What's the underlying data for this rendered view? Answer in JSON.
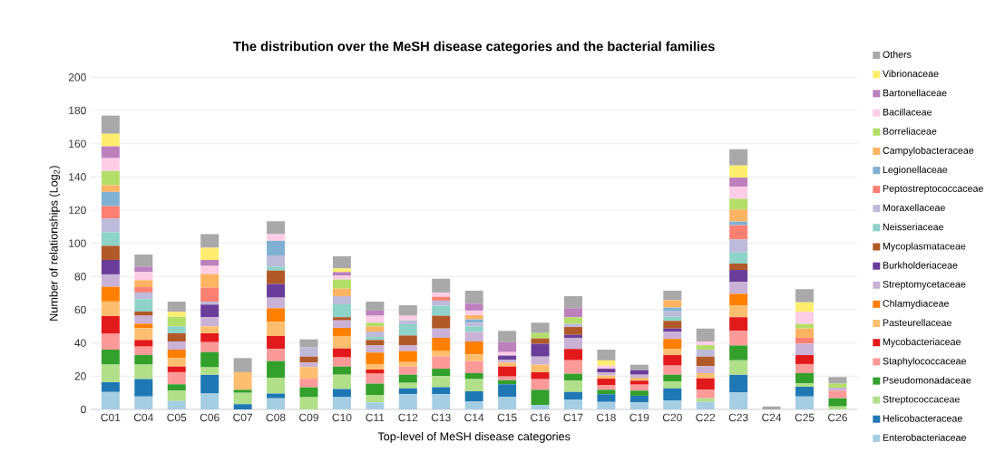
{
  "chart_data": {
    "type": "bar",
    "stacked": true,
    "title": "The distribution over the MeSH disease categories and the bacterial families",
    "xlabel": "Top-level of MeSH disease categories",
    "ylabel": "Number of relationships (Log$_{2}$)",
    "categories": [
      "C01",
      "C04",
      "C05",
      "C06",
      "C07",
      "C08",
      "C09",
      "C10",
      "C11",
      "C12",
      "C13",
      "C14",
      "C15",
      "C16",
      "C17",
      "C18",
      "C19",
      "C20",
      "C22",
      "C23",
      "C24",
      "C25",
      "C26"
    ],
    "ylim": [
      0,
      200
    ],
    "yticks": [
      0,
      20,
      40,
      60,
      80,
      100,
      120,
      140,
      160,
      180,
      200
    ],
    "grid": "y",
    "legend": "right",
    "series": [
      {
        "name": "Enterobacteriaceae",
        "color": "#a6cee3",
        "values": [
          10.5,
          7.8,
          5,
          9.6,
          null,
          6.7,
          null,
          7.3,
          4.2,
          9.1,
          9.1,
          4.9,
          7.6,
          2.7,
          6,
          4.5,
          4.2,
          5.5,
          4.5,
          10.4,
          null,
          7.8,
          null
        ]
      },
      {
        "name": "Helicobacteraceae",
        "color": "#1f78b4",
        "values": [
          5.9,
          10.4,
          null,
          11.3,
          3.1,
          2.9,
          null,
          4.9,
          null,
          3.6,
          4.2,
          6,
          7.5,
          null,
          4.5,
          4.6,
          4,
          7.2,
          null,
          10.5,
          null,
          5.8,
          null
        ]
      },
      {
        "name": "Streptococcaceae",
        "color": "#b2df8a",
        "values": [
          10.6,
          8.8,
          6.3,
          4.4,
          6.9,
          9.5,
          7.3,
          8.7,
          4.5,
          3.3,
          6.7,
          7.3,
          null,
          null,
          6.8,
          null,
          null,
          4.2,
          2.2,
          8.7,
          null,
          2.2,
          1.8
        ]
      },
      {
        "name": "Pseudomonadaceae",
        "color": "#33a02c",
        "values": [
          9,
          5.7,
          3.8,
          9.2,
          1.8,
          10,
          6,
          4.9,
          6.8,
          4.9,
          4.5,
          3.6,
          2.5,
          9.1,
          4.2,
          2.7,
          3.1,
          4,
          null,
          8.9,
          null,
          6,
          4.9
        ]
      },
      {
        "name": "Staphylococcaceae",
        "color": "#fb9a99",
        "values": [
          9.5,
          5.1,
          7.3,
          6,
          null,
          7.3,
          5.2,
          5.5,
          6,
          4.9,
          7.3,
          7.3,
          2.2,
          6.4,
          8.1,
          2.7,
          3.6,
          5.5,
          5.1,
          8.8,
          null,
          5.5,
          4.6
        ]
      },
      {
        "name": "Mycobacteriaceae",
        "color": "#e31a1c",
        "values": [
          10.7,
          4,
          3.4,
          5.3,
          null,
          7.8,
          null,
          5.4,
          2.5,
          null,
          null,
          null,
          6,
          4.2,
          6.8,
          4,
          2.4,
          6.3,
          6.9,
          8.2,
          null,
          5.4,
          null
        ]
      },
      {
        "name": "Pasteurellaceae",
        "color": "#fdbf6f",
        "values": [
          8.8,
          7.2,
          5.1,
          4.2,
          10.6,
          8.5,
          7,
          7.5,
          3.3,
          2.7,
          3.3,
          4,
          2.4,
          4.5,
          null,
          1.9,
          1.8,
          3.7,
          3.1,
          7.2,
          null,
          null,
          null
        ]
      },
      {
        "name": "Chlamydiaceae",
        "color": "#ff7f00",
        "values": [
          8.8,
          2.6,
          5.1,
          null,
          null,
          8.2,
          null,
          4.9,
          6.9,
          6.6,
          8,
          7.8,
          null,
          null,
          null,
          null,
          null,
          6,
          null,
          6.9,
          null,
          null,
          null
        ]
      },
      {
        "name": "Streptomycetaceae",
        "color": "#cab2d6",
        "values": [
          7.5,
          4.8,
          4.9,
          5.5,
          null,
          6.4,
          2.7,
          4.5,
          4.3,
          3.6,
          5.6,
          5.8,
          1.8,
          4.9,
          6.7,
          1.8,
          1.8,
          4.3,
          4.2,
          7.1,
          null,
          6.9,
          1.8
        ]
      },
      {
        "name": "Burkholderiaceae",
        "color": "#6a3d9a",
        "values": [
          8.7,
          null,
          null,
          7.6,
          null,
          8.2,
          null,
          null,
          null,
          null,
          null,
          null,
          2.4,
          7.7,
          1.8,
          2.3,
          2.7,
          2,
          null,
          7.3,
          null,
          null,
          null
        ]
      },
      {
        "name": "Mycoplasmataceae",
        "color": "#b15928",
        "values": [
          8.5,
          2.6,
          4.9,
          null,
          null,
          8.1,
          3.6,
          1.9,
          3.3,
          5.8,
          7.7,
          null,
          null,
          3.2,
          4.7,
          null,
          null,
          4.6,
          5.8,
          3.8,
          null,
          null,
          null
        ]
      },
      {
        "name": "Neisseriaceae",
        "color": "#8dd3c7",
        "values": [
          8.2,
          7.4,
          4.2,
          null,
          null,
          2.4,
          null,
          7.8,
          1.8,
          6.8,
          6,
          3.3,
          null,
          null,
          null,
          null,
          null,
          2.5,
          null,
          6.7,
          null,
          null,
          null
        ]
      },
      {
        "name": "Moraxellaceae",
        "color": "#bebada",
        "values": [
          8.3,
          4,
          null,
          1.8,
          null,
          6.7,
          5.5,
          4.9,
          3.3,
          2.3,
          3.1,
          2.2,
          null,
          null,
          1.9,
          null,
          null,
          3.3,
          4.2,
          7.9,
          null,
          null,
          null
        ]
      },
      {
        "name": "Peptostreptococcaceae",
        "color": "#fb8072",
        "values": [
          7.4,
          3.2,
          null,
          8.4,
          null,
          null,
          null,
          null,
          null,
          null,
          2.3,
          null,
          null,
          null,
          null,
          null,
          null,
          null,
          null,
          8.5,
          null,
          3.5,
          null
        ]
      },
      {
        "name": "Legionellaceae",
        "color": "#80b1d3",
        "values": [
          8.6,
          null,
          null,
          null,
          null,
          8.8,
          null,
          null,
          null,
          null,
          null,
          2,
          null,
          null,
          null,
          null,
          null,
          2.2,
          null,
          2.2,
          null,
          null,
          null
        ]
      },
      {
        "name": "Campylobacteraceae",
        "color": "#fdb462",
        "values": [
          4,
          4.2,
          null,
          8.2,
          null,
          null,
          null,
          4.5,
          3.1,
          null,
          null,
          2.5,
          null,
          null,
          null,
          null,
          null,
          4.5,
          null,
          7.3,
          null,
          5.6,
          null
        ]
      },
      {
        "name": "Borreliaceae",
        "color": "#b3de69",
        "values": [
          8.6,
          null,
          5.8,
          null,
          null,
          null,
          null,
          5.5,
          2.2,
          null,
          null,
          null,
          null,
          3.3,
          4,
          null,
          null,
          null,
          2.7,
          6.5,
          null,
          2.8,
          2.4
        ]
      },
      {
        "name": "Bacillaceae",
        "color": "#fccde5",
        "values": [
          7.7,
          4.9,
          null,
          4.9,
          null,
          4,
          null,
          2.3,
          4.2,
          2.8,
          2.6,
          2.8,
          2.1,
          null,
          null,
          1.9,
          null,
          null,
          2.2,
          7.3,
          null,
          7.2,
          null
        ]
      },
      {
        "name": "Bartonellaceae",
        "color": "#bc80bd",
        "values": [
          7.1,
          3.3,
          null,
          3.6,
          null,
          null,
          null,
          2.2,
          3.1,
          null,
          null,
          4.1,
          5.9,
          null,
          5.4,
          null,
          null,
          null,
          null,
          5.4,
          null,
          null,
          null
        ]
      },
      {
        "name": "Vibrionaceae",
        "color": "#ffed6f",
        "values": [
          7.6,
          null,
          2.9,
          7.3,
          null,
          null,
          null,
          2.2,
          null,
          null,
          null,
          null,
          null,
          null,
          null,
          3.1,
          null,
          null,
          null,
          7.3,
          null,
          5.8,
          null
        ]
      },
      {
        "name": "Others",
        "color": "#a9a9a9",
        "values": [
          11,
          7.3,
          6.2,
          8.2,
          8.5,
          7.8,
          4.9,
          7.3,
          5.4,
          6.3,
          8.3,
          7.9,
          6.9,
          6.2,
          7.3,
          6.5,
          3.3,
          5.7,
          7.8,
          9.8,
          1.8,
          7.9,
          4
        ]
      }
    ]
  }
}
